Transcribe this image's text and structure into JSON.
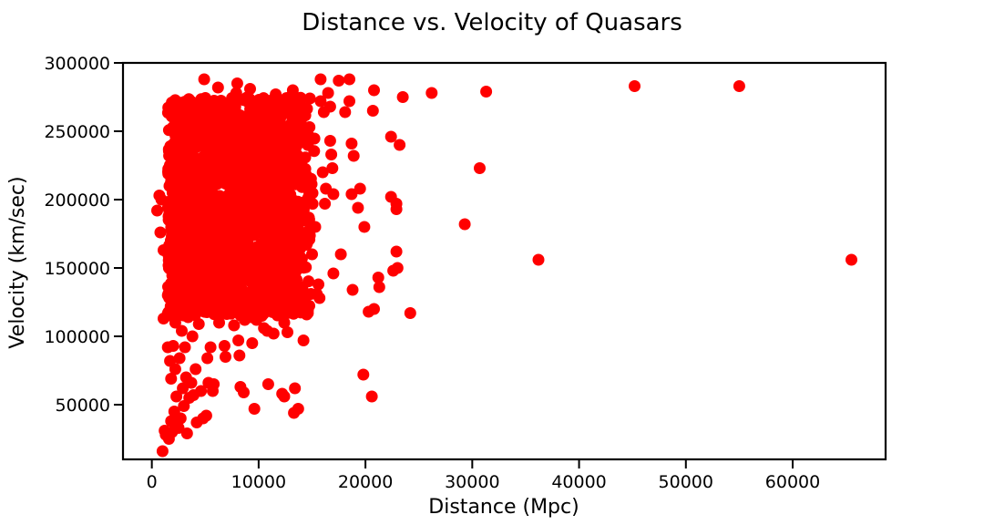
{
  "chart_data": {
    "type": "scatter",
    "title": "Distance vs. Velocity of Quasars",
    "xlabel": "Distance (Mpc)",
    "ylabel": "Velocity (km/sec)",
    "xlim": [
      -2700,
      68700
    ],
    "ylim": [
      10000,
      300000
    ],
    "x_ticks": [
      0,
      10000,
      20000,
      30000,
      40000,
      50000,
      60000
    ],
    "y_ticks": [
      50000,
      100000,
      150000,
      200000,
      250000,
      300000
    ],
    "grid": false,
    "marker_color": "#ff0000",
    "points": [
      [
        65500,
        156000
      ],
      [
        55000,
        283000
      ],
      [
        45200,
        283000
      ],
      [
        36200,
        156000
      ],
      [
        31300,
        279000
      ],
      [
        30700,
        223000
      ],
      [
        29300,
        182000
      ],
      [
        26200,
        278000
      ],
      [
        24200,
        117000
      ],
      [
        23500,
        275000
      ],
      [
        23200,
        240000
      ],
      [
        23000,
        150000
      ],
      [
        22900,
        162000
      ],
      [
        22900,
        193000
      ],
      [
        22900,
        197000
      ],
      [
        22600,
        148000
      ],
      [
        22400,
        202000
      ],
      [
        22400,
        246000
      ],
      [
        21300,
        136000
      ],
      [
        21200,
        143000
      ],
      [
        20800,
        120000
      ],
      [
        20600,
        56000
      ],
      [
        20300,
        118000
      ],
      [
        20700,
        265000
      ],
      [
        20800,
        280000
      ],
      [
        19900,
        180000
      ],
      [
        19800,
        72000
      ],
      [
        19500,
        208000
      ],
      [
        19300,
        194000
      ],
      [
        18900,
        232000
      ],
      [
        18700,
        204000
      ],
      [
        18800,
        134000
      ],
      [
        18700,
        241000
      ],
      [
        18500,
        272000
      ],
      [
        18500,
        288000
      ],
      [
        18100,
        264000
      ],
      [
        17700,
        160000
      ],
      [
        17500,
        287000
      ],
      [
        17000,
        146000
      ],
      [
        17000,
        204000
      ],
      [
        16900,
        223000
      ],
      [
        16800,
        233000
      ],
      [
        16700,
        243000
      ],
      [
        16700,
        268000
      ],
      [
        16500,
        278000
      ],
      [
        16300,
        208000
      ],
      [
        16200,
        197000
      ],
      [
        16100,
        264000
      ],
      [
        16000,
        220000
      ],
      [
        15800,
        272000
      ],
      [
        15800,
        288000
      ],
      [
        15700,
        128000
      ],
      [
        15600,
        138000
      ],
      [
        15300,
        180000
      ],
      [
        15000,
        160000
      ],
      [
        14900,
        131000
      ],
      [
        14800,
        274000
      ],
      [
        14500,
        186000
      ],
      [
        14500,
        116000
      ],
      [
        14300,
        212000
      ],
      [
        14200,
        97000
      ],
      [
        14000,
        128000
      ],
      [
        13900,
        270000
      ],
      [
        13700,
        47000
      ],
      [
        13400,
        62000
      ],
      [
        13300,
        44000
      ],
      [
        13200,
        280000
      ],
      [
        13100,
        130000
      ],
      [
        13000,
        243000
      ],
      [
        12900,
        118000
      ],
      [
        12700,
        103000
      ],
      [
        12400,
        56000
      ],
      [
        12400,
        110000
      ],
      [
        12200,
        58000
      ],
      [
        12100,
        268000
      ],
      [
        12000,
        123000
      ],
      [
        11600,
        277000
      ],
      [
        11400,
        102000
      ],
      [
        10900,
        65000
      ],
      [
        10800,
        104000
      ],
      [
        10500,
        106000
      ],
      [
        10300,
        115000
      ],
      [
        10000,
        137000
      ],
      [
        9800,
        112000
      ],
      [
        9600,
        47000
      ],
      [
        9400,
        95000
      ],
      [
        9300,
        114000
      ],
      [
        9200,
        281000
      ],
      [
        8700,
        112000
      ],
      [
        8600,
        59000
      ],
      [
        8300,
        63000
      ],
      [
        8200,
        86000
      ],
      [
        8100,
        97000
      ],
      [
        8000,
        285000
      ],
      [
        7900,
        278000
      ],
      [
        7700,
        108000
      ],
      [
        7200,
        120000
      ],
      [
        6900,
        85000
      ],
      [
        6800,
        93000
      ],
      [
        6300,
        110000
      ],
      [
        6200,
        282000
      ],
      [
        5800,
        65000
      ],
      [
        5700,
        60000
      ],
      [
        5500,
        92000
      ],
      [
        5300,
        66000
      ],
      [
        5200,
        84000
      ],
      [
        5100,
        42000
      ],
      [
        4900,
        288000
      ],
      [
        4800,
        40000
      ],
      [
        4600,
        60000
      ],
      [
        4400,
        109000
      ],
      [
        4200,
        37000
      ],
      [
        4100,
        76000
      ],
      [
        3900,
        57000
      ],
      [
        3800,
        100000
      ],
      [
        3700,
        66000
      ],
      [
        3600,
        124000
      ],
      [
        3500,
        55000
      ],
      [
        3400,
        114000
      ],
      [
        3300,
        29000
      ],
      [
        3200,
        70000
      ],
      [
        3100,
        92000
      ],
      [
        3000,
        49000
      ],
      [
        2900,
        62000
      ],
      [
        2800,
        104000
      ],
      [
        2700,
        40000
      ],
      [
        2600,
        84000
      ],
      [
        2500,
        33000
      ],
      [
        2400,
        137000
      ],
      [
        2300,
        56000
      ],
      [
        2200,
        76000
      ],
      [
        2200,
        110000
      ],
      [
        2100,
        45000
      ],
      [
        2000,
        93000
      ],
      [
        1900,
        30000
      ],
      [
        1800,
        69000
      ],
      [
        1800,
        38000
      ],
      [
        1700,
        163000
      ],
      [
        1700,
        82000
      ],
      [
        1600,
        25000
      ],
      [
        1600,
        150000
      ],
      [
        1500,
        130000
      ],
      [
        1500,
        92000
      ],
      [
        1300,
        28000
      ],
      [
        1200,
        31000
      ],
      [
        1100,
        113000
      ],
      [
        1100,
        163000
      ],
      [
        1000,
        16000
      ],
      [
        900,
        200000
      ],
      [
        800,
        176000
      ],
      [
        700,
        203000
      ],
      [
        500,
        192000
      ]
    ],
    "dense_cluster": {
      "x_range": [
        1500,
        15500
      ],
      "y_range": [
        115000,
        275000
      ],
      "count": 2100
    }
  }
}
